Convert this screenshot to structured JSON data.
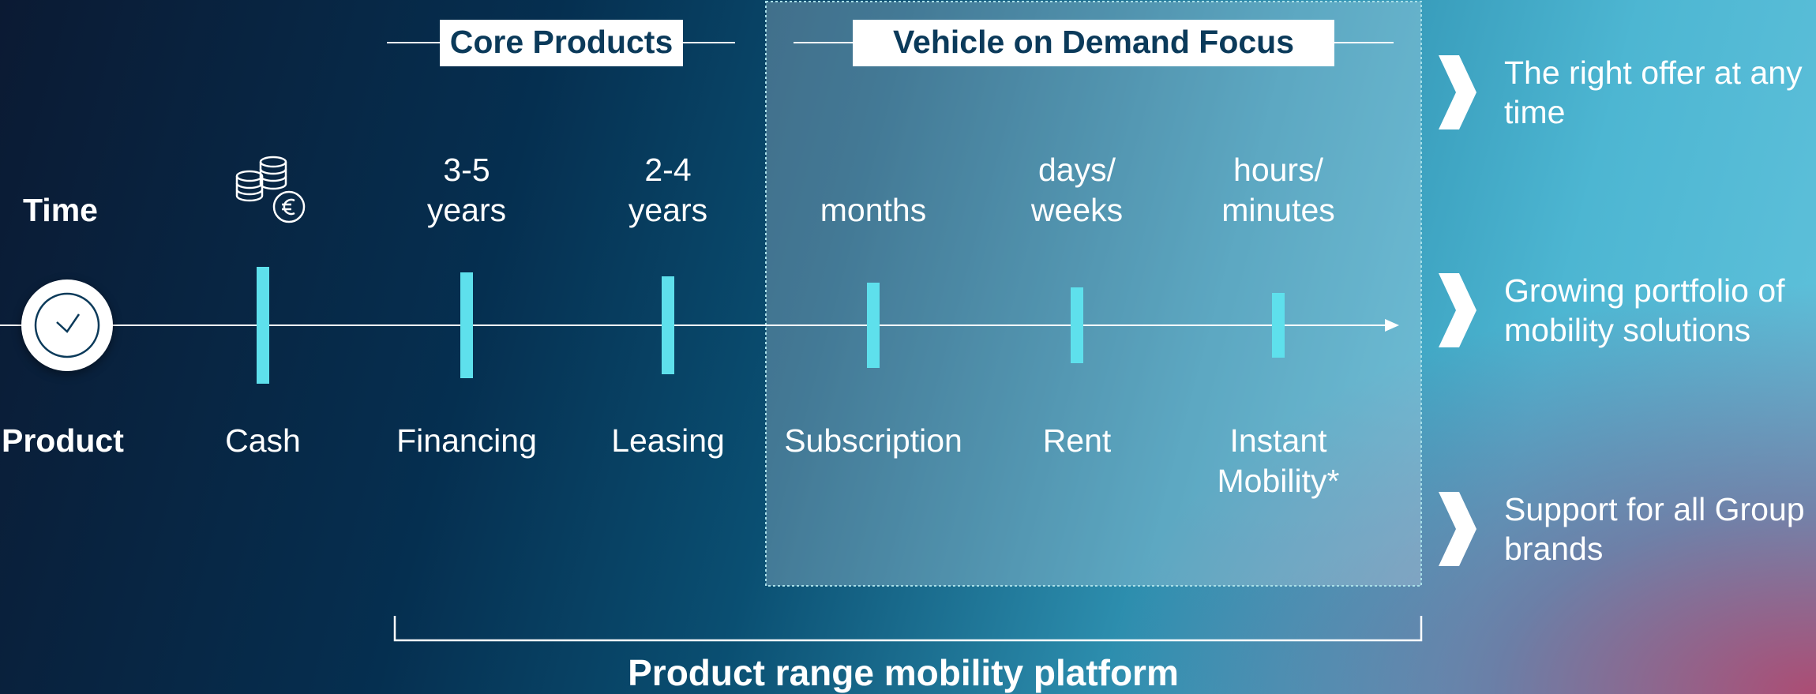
{
  "core_products": "Core Products",
  "vod_focus": "Vehicle on Demand Focus",
  "time_label": "Time",
  "product_label": "Product",
  "columns": [
    {
      "product": [
        "Cash"
      ]
    },
    {
      "time": [
        "3-5",
        "years"
      ],
      "product": [
        "Financing"
      ]
    },
    {
      "time": [
        "2-4",
        "years"
      ],
      "product": [
        "Leasing"
      ]
    },
    {
      "time": [
        "months"
      ],
      "product": [
        "Subscription"
      ]
    },
    {
      "time": [
        "days/",
        "weeks"
      ],
      "product": [
        "Rent"
      ]
    },
    {
      "time": [
        "hours/",
        "minutes"
      ],
      "product": [
        "Instant",
        "Mobility*"
      ]
    }
  ],
  "benefits": [
    [
      "The right offer at any",
      "time"
    ],
    [
      "Growing portfolio of",
      "mobility solutions"
    ],
    [
      "Support for all Group",
      "brands"
    ]
  ],
  "platform": "Product range mobility platform"
}
